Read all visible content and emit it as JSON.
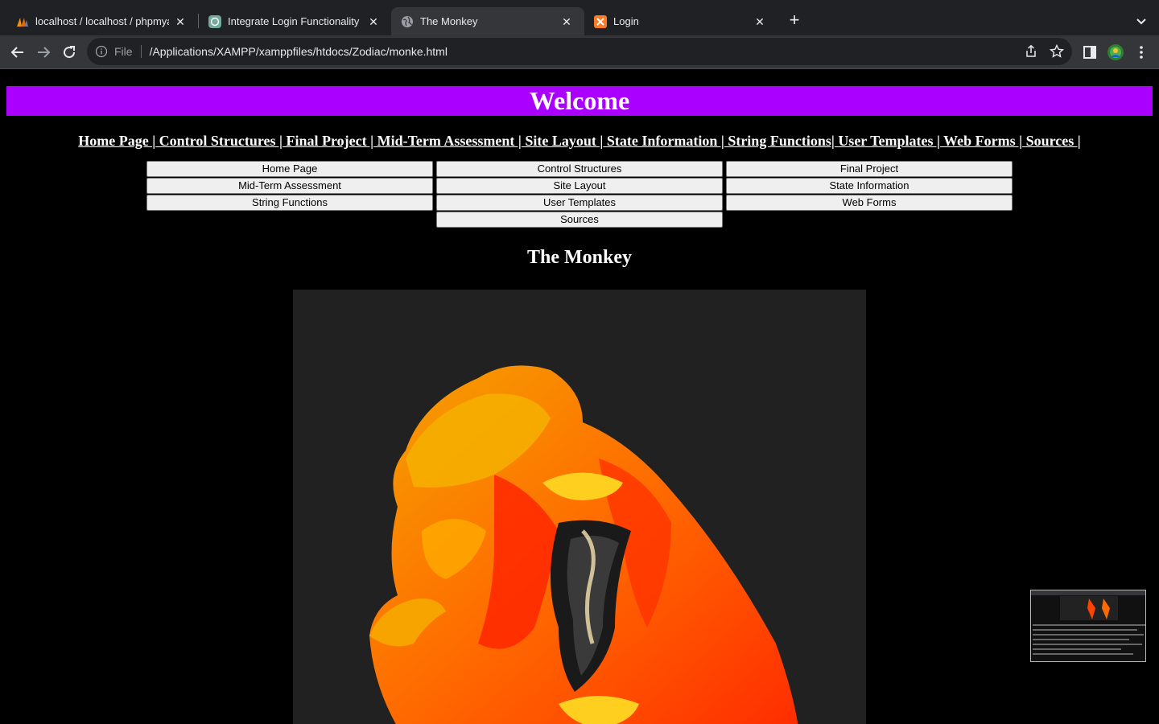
{
  "browser": {
    "tabs": [
      {
        "title": "localhost / localhost / phpmyad",
        "icon": "phpmyadmin-icon"
      },
      {
        "title": "Integrate Login Functionality",
        "icon": "chatgpt-icon"
      },
      {
        "title": "The Monkey",
        "icon": "globe-icon",
        "active": true
      },
      {
        "title": "Login",
        "icon": "xampp-icon"
      }
    ],
    "address": {
      "scheme_label": "File",
      "url": "/Applications/XAMPP/xamppfiles/htdocs/Zodiac/monke.html"
    }
  },
  "page": {
    "banner": "Welcome",
    "links": [
      {
        "label": "Home Page |",
        "sep": " "
      },
      {
        "label": "Control Structures |",
        "sep": " "
      },
      {
        "label": "Final Project |",
        "sep": " "
      },
      {
        "label": "Mid-Term Assessment |",
        "sep": " "
      },
      {
        "label": "Site Layout |",
        "sep": " "
      },
      {
        "label": "State Information |",
        "sep": " "
      },
      {
        "label": "String Functions|",
        "sep": " "
      },
      {
        "label": "User Templates |",
        "sep": " "
      },
      {
        "label": "Web Forms |",
        "sep": " "
      },
      {
        "label": "Sources |",
        "sep": ""
      }
    ],
    "buttons": [
      "Home Page",
      "Control Structures",
      "Final Project",
      "Mid-Term Assessment",
      "Site Layout",
      "State Information",
      "String Functions",
      "User Templates",
      "Web Forms",
      "Sources"
    ],
    "heading": "The Monkey"
  },
  "colors": {
    "banner": "#aa00ff",
    "page_background": "#000000",
    "image_background": "#212121"
  }
}
